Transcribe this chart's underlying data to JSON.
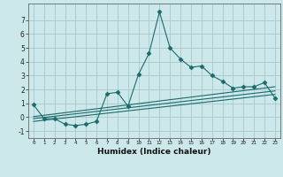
{
  "xlabel": "Humidex (Indice chaleur)",
  "ylabel": "",
  "background_color": "#cce8ea",
  "grid_color": "#aac8cc",
  "line_color": "#1a6b6b",
  "xlim": [
    -0.5,
    23.5
  ],
  "ylim": [
    -1.5,
    8.2
  ],
  "yticks": [
    -1,
    0,
    1,
    2,
    3,
    4,
    5,
    6,
    7
  ],
  "xticks": [
    0,
    1,
    2,
    3,
    4,
    5,
    6,
    7,
    8,
    9,
    10,
    11,
    12,
    13,
    14,
    15,
    16,
    17,
    18,
    19,
    20,
    21,
    22,
    23
  ],
  "series1_x": [
    0,
    1,
    2,
    3,
    4,
    5,
    6,
    7,
    8,
    9,
    10,
    11,
    12,
    13,
    14,
    15,
    16,
    17,
    18,
    19,
    20,
    21,
    22,
    23
  ],
  "series1_y": [
    0.9,
    -0.1,
    -0.1,
    -0.5,
    -0.6,
    -0.5,
    -0.3,
    1.7,
    1.8,
    0.8,
    3.1,
    4.6,
    7.6,
    5.0,
    4.2,
    3.6,
    3.7,
    3.0,
    2.6,
    2.1,
    2.2,
    2.2,
    2.5,
    1.4
  ],
  "series2_x": [
    0,
    23
  ],
  "series2_y": [
    0.05,
    2.2
  ],
  "series3_x": [
    0,
    23
  ],
  "series3_y": [
    -0.1,
    1.9
  ],
  "series4_x": [
    0,
    23
  ],
  "series4_y": [
    -0.3,
    1.65
  ]
}
